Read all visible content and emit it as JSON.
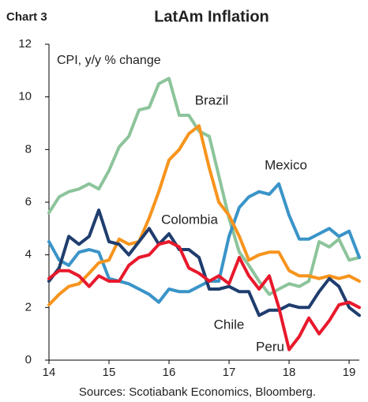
{
  "chart_data": {
    "type": "line",
    "label": "Chart 3",
    "title": "LatAm Inflation",
    "ylabel": "CPI, y/y % change",
    "source": "Sources: Scotiabank Economics, Bloomberg.",
    "x": [
      14.0,
      14.17,
      14.33,
      14.5,
      14.67,
      14.83,
      15.0,
      15.17,
      15.33,
      15.5,
      15.67,
      15.83,
      16.0,
      16.17,
      16.33,
      16.5,
      16.67,
      16.83,
      17.0,
      17.17,
      17.33,
      17.5,
      17.67,
      17.83,
      18.0,
      18.17,
      18.33,
      18.5,
      18.67,
      18.83,
      19.0,
      19.17
    ],
    "series": [
      {
        "name": "Brazil",
        "color": "#8dc49b",
        "values": [
          5.6,
          6.2,
          6.4,
          6.5,
          6.7,
          6.5,
          7.2,
          8.1,
          8.5,
          9.5,
          9.6,
          10.5,
          10.7,
          9.3,
          9.3,
          8.7,
          8.5,
          7.0,
          5.4,
          4.1,
          3.6,
          3.0,
          2.5,
          2.7,
          2.9,
          2.8,
          3.0,
          4.5,
          4.3,
          4.6,
          3.8,
          3.9
        ]
      },
      {
        "name": "Mexico",
        "color": "#3a94c8",
        "values": [
          4.5,
          3.8,
          3.6,
          4.1,
          4.2,
          4.1,
          3.1,
          3.0,
          2.9,
          2.7,
          2.5,
          2.2,
          2.7,
          2.6,
          2.6,
          2.8,
          3.0,
          3.0,
          4.7,
          5.8,
          6.2,
          6.4,
          6.3,
          6.7,
          5.5,
          4.6,
          4.6,
          4.8,
          5.0,
          4.7,
          4.9,
          3.9
        ]
      },
      {
        "name": "Colombia",
        "color": "#f7941d",
        "values": [
          2.1,
          2.5,
          2.8,
          2.9,
          3.3,
          3.7,
          3.8,
          4.6,
          4.4,
          4.5,
          5.4,
          6.4,
          7.6,
          8.0,
          8.6,
          8.9,
          7.3,
          6.0,
          5.5,
          4.7,
          3.8,
          4.0,
          4.1,
          4.1,
          3.4,
          3.2,
          3.2,
          3.1,
          3.2,
          3.1,
          3.2,
          3.0
        ]
      },
      {
        "name": "Chile",
        "color": "#1f3d6e",
        "values": [
          3.0,
          3.5,
          4.7,
          4.4,
          4.7,
          5.7,
          4.5,
          4.4,
          4.0,
          4.5,
          5.0,
          4.4,
          4.8,
          4.2,
          4.2,
          3.9,
          2.7,
          2.7,
          2.8,
          2.6,
          2.6,
          1.7,
          1.9,
          1.9,
          2.1,
          2.0,
          2.0,
          2.6,
          3.1,
          2.8,
          2.0,
          1.7
        ]
      },
      {
        "name": "Peru",
        "color": "#e8192c",
        "values": [
          3.1,
          3.4,
          3.4,
          3.2,
          2.8,
          3.2,
          3.0,
          3.0,
          3.6,
          3.9,
          4.0,
          4.4,
          4.5,
          4.3,
          3.5,
          3.3,
          3.0,
          3.2,
          2.9,
          3.9,
          3.2,
          2.7,
          3.2,
          2.0,
          0.4,
          0.9,
          1.6,
          1.0,
          1.5,
          2.1,
          2.2,
          2.0
        ]
      }
    ],
    "xlim": [
      14,
      19.17
    ],
    "xticks": [
      14,
      15,
      16,
      17,
      18,
      19
    ],
    "ylim": [
      0,
      12
    ],
    "yticks": [
      0,
      2,
      4,
      6,
      8,
      10,
      12
    ],
    "grid": false
  }
}
